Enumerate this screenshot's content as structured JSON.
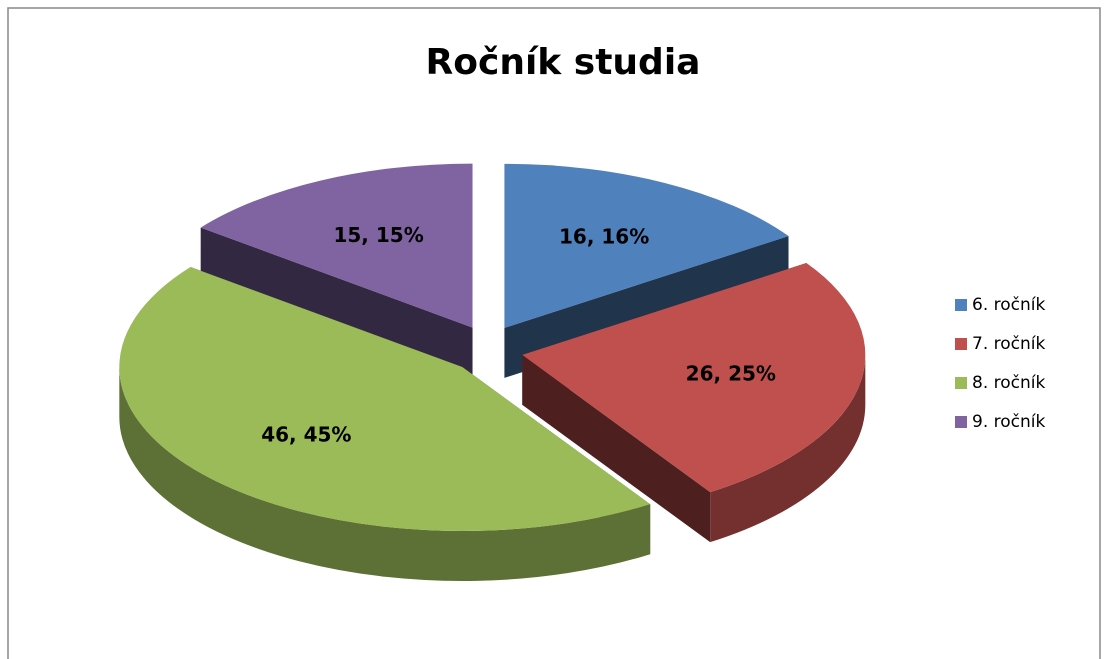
{
  "chart_data": {
    "type": "pie3d",
    "title": "Ročník studia",
    "categories": [
      "6. ročník",
      "7. ročník",
      "8. ročník",
      "9. ročník"
    ],
    "values": [
      16,
      26,
      46,
      15
    ],
    "value_labels": [
      "16, 16%",
      "26, 25%",
      "46, 45%",
      "15, 15%"
    ],
    "colors": [
      "#4f81bd",
      "#c0504d",
      "#9bbb59",
      "#8064a2"
    ],
    "legend": "right"
  }
}
